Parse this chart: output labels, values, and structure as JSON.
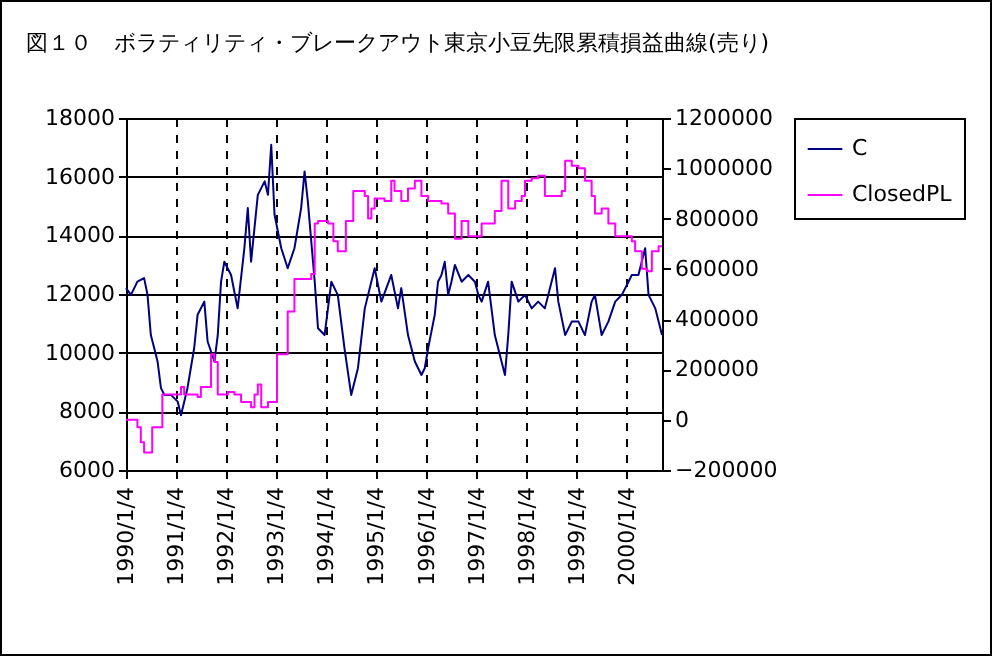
{
  "chart_data": {
    "type": "line",
    "title": "図１０　ボラティリティ・ブレークアウト東京小豆先限累積損益曲線(売り)",
    "legend": "right",
    "grid": true,
    "xlim": [
      "1990-01-04",
      "2000-09-16"
    ],
    "xticks": [
      {
        "value": "1990-01-04",
        "label": "1990/1/4"
      },
      {
        "value": "1991-01-04",
        "label": "1991/1/4"
      },
      {
        "value": "1992-01-04",
        "label": "1992/1/4"
      },
      {
        "value": "1993-01-04",
        "label": "1993/1/4"
      },
      {
        "value": "1994-01-04",
        "label": "1994/1/4"
      },
      {
        "value": "1995-01-04",
        "label": "1995/1/4"
      },
      {
        "value": "1996-01-04",
        "label": "1996/1/4"
      },
      {
        "value": "1997-01-04",
        "label": "1997/1/4"
      },
      {
        "value": "1998-01-04",
        "label": "1998/1/4"
      },
      {
        "value": "1999-01-04",
        "label": "1999/1/4"
      },
      {
        "value": "2000-01-04",
        "label": "2000/1/4"
      }
    ],
    "ylim": [
      6000,
      18000
    ],
    "yticks": [
      6000,
      8000,
      10000,
      12000,
      14000,
      16000,
      18000
    ],
    "y2lim": [
      -200000,
      1200000
    ],
    "y2ticks": [
      -200000,
      0,
      200000,
      400000,
      600000,
      800000,
      1000000,
      1200000
    ],
    "series": [
      {
        "name": "C",
        "type": "line",
        "color": "#000080",
        "x": [
          "1990-01-04",
          "1990-02-09",
          "1990-03-28",
          "1990-05-16",
          "1990-06-10",
          "1990-07-04",
          "1990-07-29",
          "1990-08-22",
          "1990-09-16",
          "1990-10-11",
          "1990-11-28",
          "1991-01-16",
          "1991-02-09",
          "1991-03-28",
          "1991-05-16",
          "1991-06-10",
          "1991-07-29",
          "1991-08-22",
          "1991-10-11",
          "1991-11-04",
          "1991-11-28",
          "1991-12-22",
          "1992-02-09",
          "1992-03-28",
          "1992-05-16",
          "1992-06-10",
          "1992-07-04",
          "1992-08-22",
          "1992-10-11",
          "1992-11-04",
          "1992-11-28",
          "1992-12-22",
          "1993-02-09",
          "1993-03-28",
          "1993-05-16",
          "1993-07-04",
          "1993-07-29",
          "1993-08-22",
          "1993-10-11",
          "1993-11-04",
          "1993-12-22",
          "1994-02-09",
          "1994-03-28",
          "1994-05-16",
          "1994-07-04",
          "1994-08-22",
          "1994-10-11",
          "1994-12-22",
          "1995-02-09",
          "1995-04-22",
          "1995-06-10",
          "1995-07-04",
          "1995-08-22",
          "1995-10-11",
          "1995-11-28",
          "1995-12-22",
          "1996-01-16",
          "1996-03-04",
          "1996-03-28",
          "1996-04-22",
          "1996-05-16",
          "1996-06-10",
          "1996-07-04",
          "1996-07-29",
          "1996-09-16",
          "1996-11-04",
          "1996-12-22",
          "1997-01-16",
          "1997-02-09",
          "1997-03-28",
          "1997-05-16",
          "1997-07-04",
          "1997-07-29",
          "1997-08-22",
          "1997-09-16",
          "1997-11-04",
          "1997-12-22",
          "1998-02-09",
          "1998-03-28",
          "1998-05-16",
          "1998-07-04",
          "1998-07-29",
          "1998-08-22",
          "1998-10-11",
          "1998-11-28",
          "1999-01-16",
          "1999-03-04",
          "1999-04-22",
          "1999-05-16",
          "1999-07-04",
          "1999-08-22",
          "1999-10-11",
          "1999-11-28",
          "2000-01-16",
          "2000-02-09",
          "2000-03-28",
          "2000-05-16",
          "2000-06-10",
          "2000-07-29",
          "2000-09-16"
        ],
        "values": [
          12200,
          11970,
          12420,
          12540,
          11970,
          10600,
          10150,
          9700,
          8790,
          8560,
          8560,
          8330,
          7870,
          8790,
          10150,
          11290,
          11740,
          10380,
          9700,
          10600,
          12420,
          13100,
          12650,
          11510,
          13560,
          14930,
          13100,
          15380,
          15840,
          15380,
          17090,
          14700,
          13560,
          12880,
          13560,
          14930,
          16180,
          15150,
          12420,
          10830,
          10600,
          12420,
          11970,
          10150,
          8560,
          9470,
          11510,
          12880,
          11740,
          12650,
          11510,
          12200,
          10600,
          9700,
          9240,
          9470,
          10150,
          11290,
          12420,
          12650,
          13100,
          11970,
          12420,
          12990,
          12420,
          12650,
          12420,
          11970,
          11740,
          12420,
          10600,
          9700,
          9240,
          10600,
          12420,
          11740,
          11970,
          11510,
          11740,
          11510,
          12420,
          12880,
          11740,
          10600,
          11060,
          11060,
          10600,
          11740,
          11970,
          10600,
          11060,
          11740,
          11970,
          12420,
          12650,
          12650,
          13560,
          11970,
          11510,
          10600
        ]
      },
      {
        "name": "ClosedPL",
        "type": "step",
        "axis": "y2",
        "color": "#ff00ff",
        "x": [
          "1990-01-04",
          "1990-03-28",
          "1990-04-22",
          "1990-05-16",
          "1990-07-14",
          "1990-09-26",
          "1991-02-09",
          "1991-03-04",
          "1991-06-10",
          "1991-07-04",
          "1991-09-16",
          "1991-10-11",
          "1991-11-04",
          "1992-01-16",
          "1992-03-04",
          "1992-04-22",
          "1992-07-04",
          "1992-07-29",
          "1992-08-22",
          "1992-09-16",
          "1992-11-04",
          "1993-01-09",
          "1993-03-28",
          "1993-05-16",
          "1993-09-16",
          "1993-10-11",
          "1993-11-04",
          "1994-01-16",
          "1994-02-24",
          "1994-03-28",
          "1994-05-26",
          "1994-07-19",
          "1994-10-11",
          "1994-11-04",
          "1994-11-28",
          "1994-12-22",
          "1995-03-04",
          "1995-04-22",
          "1995-05-16",
          "1995-07-04",
          "1995-08-22",
          "1995-10-11",
          "1995-11-28",
          "1996-01-16",
          "1996-04-22",
          "1996-06-10",
          "1996-07-29",
          "1996-09-16",
          "1996-11-04",
          "1997-02-09",
          "1997-05-16",
          "1997-07-04",
          "1997-08-22",
          "1997-10-11",
          "1997-11-28",
          "1997-12-22",
          "1998-02-09",
          "1998-03-28",
          "1998-05-16",
          "1998-09-16",
          "1998-10-11",
          "1998-11-28",
          "1999-01-16",
          "1999-03-04",
          "1999-04-22",
          "1999-05-16",
          "1999-07-04",
          "1999-08-22",
          "1999-10-11",
          "2000-02-09",
          "2000-03-04",
          "2000-04-22",
          "2000-05-31",
          "2000-07-04",
          "2000-08-22",
          "2000-09-16"
        ],
        "values": [
          0,
          -30000,
          -90000,
          -130000,
          -30000,
          100000,
          130000,
          100000,
          90000,
          130000,
          260000,
          230000,
          100000,
          110000,
          100000,
          70000,
          50000,
          100000,
          140000,
          50000,
          70000,
          260000,
          430000,
          560000,
          580000,
          780000,
          790000,
          780000,
          710000,
          670000,
          790000,
          910000,
          890000,
          800000,
          840000,
          880000,
          870000,
          950000,
          910000,
          870000,
          920000,
          950000,
          890000,
          870000,
          860000,
          820000,
          720000,
          790000,
          730000,
          780000,
          830000,
          950000,
          840000,
          870000,
          890000,
          950000,
          960000,
          970000,
          890000,
          910000,
          1030000,
          1010000,
          1000000,
          950000,
          890000,
          820000,
          840000,
          780000,
          730000,
          710000,
          670000,
          600000,
          590000,
          670000,
          690000,
          690000
        ]
      }
    ]
  }
}
